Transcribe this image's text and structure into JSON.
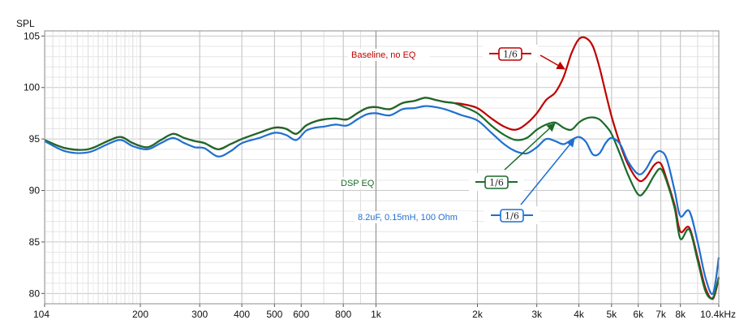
{
  "chart_data": {
    "type": "line",
    "ylabel": "SPL",
    "xscale": "log",
    "ylim": [
      79,
      105.5
    ],
    "xlim": [
      104,
      10400
    ],
    "x_ticks": [
      {
        "value": 104,
        "label": "104"
      },
      {
        "value": 200,
        "label": "200"
      },
      {
        "value": 300,
        "label": "300"
      },
      {
        "value": 400,
        "label": "400"
      },
      {
        "value": 500,
        "label": "500"
      },
      {
        "value": 600,
        "label": "600"
      },
      {
        "value": 800,
        "label": "800"
      },
      {
        "value": 1000,
        "label": "1k"
      },
      {
        "value": 2000,
        "label": "2k"
      },
      {
        "value": 3000,
        "label": "3k"
      },
      {
        "value": 4000,
        "label": "4k"
      },
      {
        "value": 5000,
        "label": "5k"
      },
      {
        "value": 6000,
        "label": "6k"
      },
      {
        "value": 7000,
        "label": "7k"
      },
      {
        "value": 8000,
        "label": "8k"
      },
      {
        "value": 10400,
        "label": "10.4kHz"
      }
    ],
    "y_ticks": [
      80,
      85,
      90,
      95,
      100,
      105
    ],
    "grid": true,
    "smoothing_label": "1/6",
    "series": [
      {
        "name": "Baseline, no EQ",
        "color": "#c00000",
        "x": [
          104,
          120,
          140,
          160,
          175,
          190,
          210,
          230,
          250,
          270,
          290,
          310,
          340,
          370,
          400,
          450,
          500,
          540,
          580,
          620,
          660,
          700,
          760,
          820,
          880,
          940,
          1000,
          1100,
          1200,
          1300,
          1400,
          1500,
          1600,
          1700,
          1800,
          2000,
          2200,
          2400,
          2600,
          2800,
          3000,
          3200,
          3400,
          3600,
          3800,
          4000,
          4200,
          4400,
          4600,
          4800,
          5000,
          5300,
          5600,
          6000,
          6300,
          6700,
          7000,
          7300,
          7700,
          8000,
          8500,
          9000,
          9500,
          10000,
          10400
        ],
        "y": [
          94.9,
          94.1,
          94.0,
          94.8,
          95.2,
          94.6,
          94.2,
          94.9,
          95.5,
          95.1,
          94.8,
          94.6,
          94.0,
          94.5,
          95.0,
          95.6,
          96.1,
          96.0,
          95.5,
          96.3,
          96.7,
          96.9,
          97.0,
          96.9,
          97.5,
          98.0,
          98.1,
          97.9,
          98.5,
          98.7,
          99.0,
          98.8,
          98.6,
          98.5,
          98.4,
          98.0,
          97.0,
          96.2,
          95.9,
          96.5,
          97.5,
          98.8,
          99.5,
          101.0,
          103.3,
          104.7,
          104.8,
          104.0,
          102.0,
          99.5,
          97.2,
          94.5,
          92.5,
          91.0,
          91.2,
          92.5,
          92.6,
          91.0,
          88.5,
          86.0,
          86.4,
          83.5,
          80.5,
          79.5,
          81.5
        ]
      },
      {
        "name": "DSP EQ",
        "color": "#1a6b2a",
        "x": [
          104,
          120,
          140,
          160,
          175,
          190,
          210,
          230,
          250,
          270,
          290,
          310,
          340,
          370,
          400,
          450,
          500,
          540,
          580,
          620,
          660,
          700,
          760,
          820,
          880,
          940,
          1000,
          1100,
          1200,
          1300,
          1400,
          1500,
          1600,
          1700,
          1800,
          2000,
          2200,
          2400,
          2600,
          2800,
          3000,
          3200,
          3400,
          3600,
          3800,
          4000,
          4200,
          4400,
          4600,
          4800,
          5000,
          5300,
          5600,
          6000,
          6300,
          6700,
          7000,
          7300,
          7700,
          8000,
          8500,
          9000,
          9500,
          10000,
          10400
        ],
        "y": [
          94.9,
          94.1,
          94.0,
          94.8,
          95.2,
          94.6,
          94.2,
          94.9,
          95.5,
          95.1,
          94.8,
          94.6,
          94.0,
          94.5,
          95.0,
          95.6,
          96.1,
          96.0,
          95.5,
          96.3,
          96.7,
          96.9,
          97.0,
          96.9,
          97.5,
          98.0,
          98.1,
          97.9,
          98.5,
          98.7,
          99.0,
          98.8,
          98.6,
          98.5,
          98.2,
          97.5,
          96.3,
          95.4,
          94.9,
          95.1,
          95.9,
          96.4,
          96.6,
          96.1,
          95.9,
          96.6,
          97.0,
          97.1,
          96.9,
          96.3,
          95.5,
          93.5,
          91.5,
          89.6,
          90.0,
          91.5,
          92.1,
          90.8,
          88.2,
          85.3,
          86.2,
          83.2,
          80.2,
          79.6,
          81.6
        ]
      },
      {
        "name": "8.2uF, 0.15mH, 100 Ohm",
        "color": "#1f6fd1",
        "x": [
          104,
          120,
          140,
          160,
          175,
          190,
          210,
          230,
          250,
          270,
          290,
          310,
          340,
          370,
          400,
          450,
          500,
          540,
          580,
          620,
          660,
          700,
          760,
          820,
          880,
          940,
          1000,
          1100,
          1200,
          1300,
          1400,
          1500,
          1600,
          1700,
          1800,
          2000,
          2200,
          2400,
          2600,
          2800,
          3000,
          3200,
          3400,
          3600,
          3800,
          4000,
          4200,
          4400,
          4600,
          4800,
          5000,
          5300,
          5600,
          6000,
          6300,
          6700,
          7000,
          7300,
          7700,
          8000,
          8500,
          9000,
          9500,
          10000,
          10400
        ],
        "y": [
          94.8,
          93.8,
          93.7,
          94.5,
          94.9,
          94.3,
          94.0,
          94.6,
          95.1,
          94.6,
          94.2,
          94.1,
          93.3,
          93.8,
          94.6,
          95.1,
          95.6,
          95.4,
          94.9,
          95.8,
          96.1,
          96.2,
          96.4,
          96.3,
          96.9,
          97.4,
          97.5,
          97.3,
          97.9,
          98.0,
          98.2,
          98.1,
          97.9,
          97.6,
          97.3,
          96.8,
          95.6,
          94.5,
          93.8,
          93.6,
          94.2,
          95.0,
          94.8,
          94.5,
          94.9,
          95.2,
          94.7,
          93.5,
          93.6,
          94.6,
          95.1,
          94.5,
          92.8,
          91.6,
          92.0,
          93.5,
          93.8,
          93.0,
          89.9,
          87.5,
          88.0,
          85.0,
          81.5,
          80.0,
          83.5
        ]
      }
    ],
    "annotations": [
      {
        "text": "Baseline, no EQ",
        "series": 0
      },
      {
        "text": "DSP EQ",
        "series": 1
      },
      {
        "text": "8.2uF, 0.15mH, 100 Ohm",
        "series": 2
      }
    ]
  }
}
